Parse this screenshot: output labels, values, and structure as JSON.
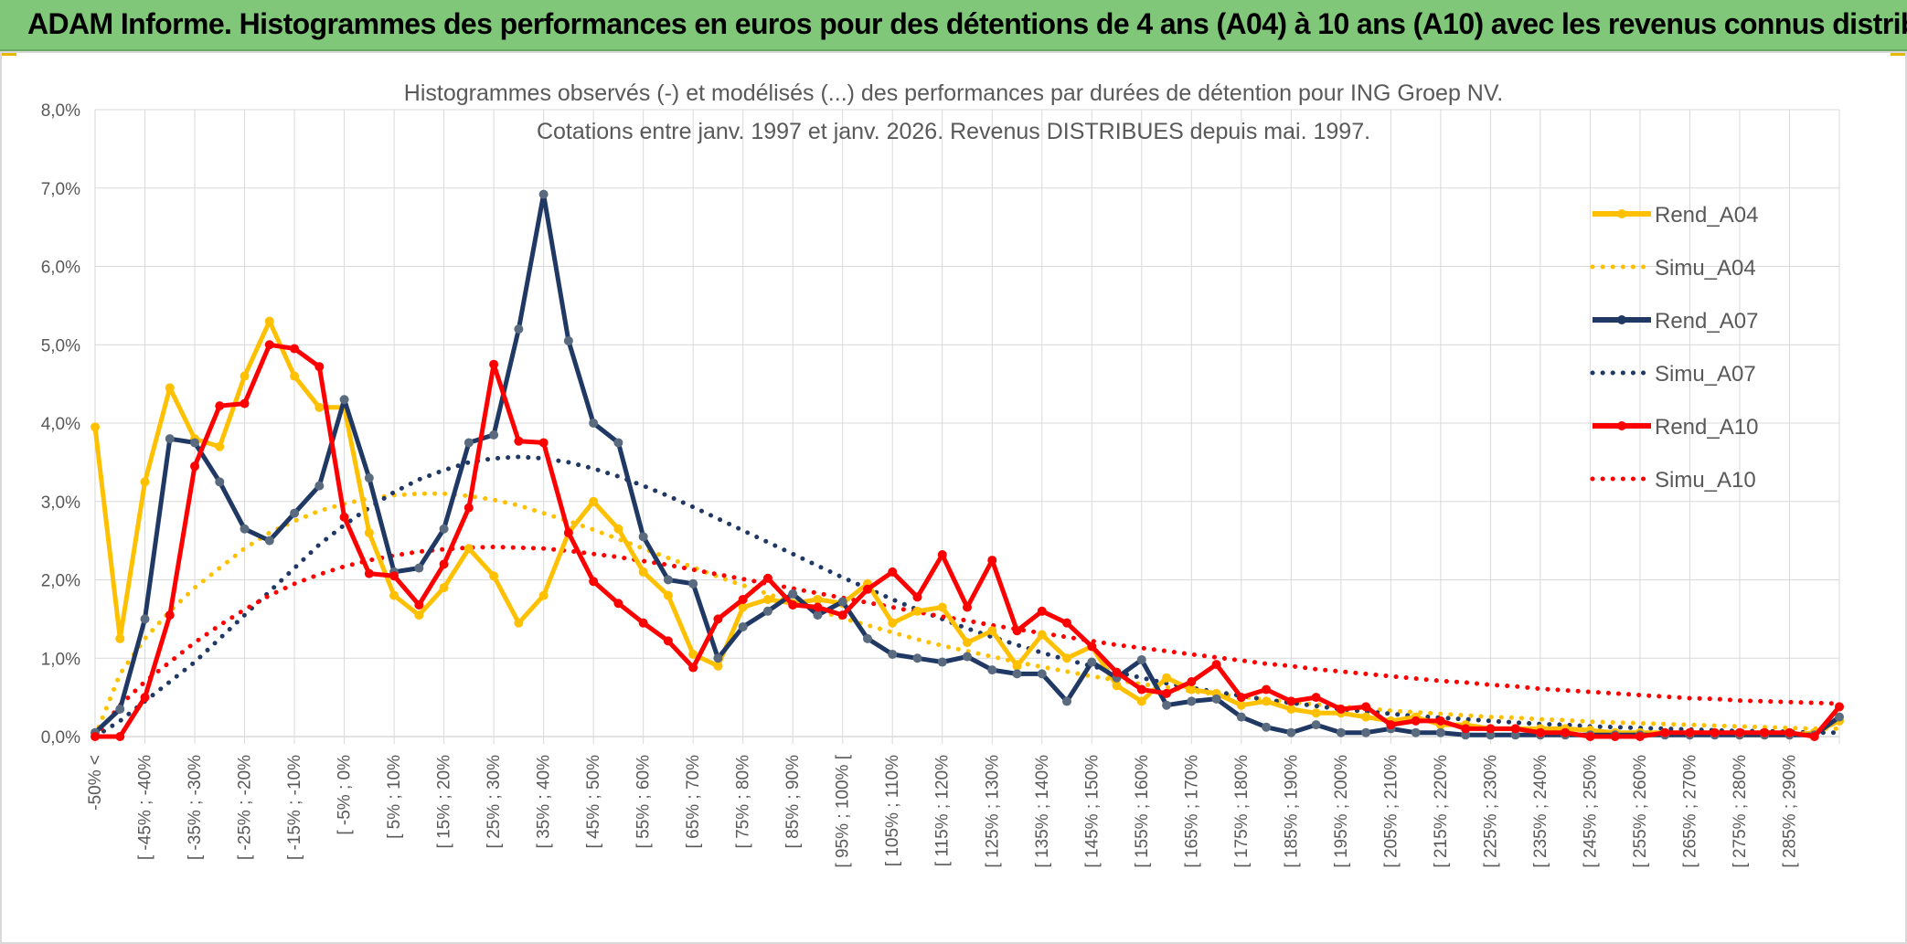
{
  "header": {
    "title": "ADAM Informe. Histogrammes des performances en euros pour des détentions de 4 ans (A04) à 10 ans (A10) avec les revenus connus distribués"
  },
  "colors": {
    "banner": "#80c77a",
    "A04": "#ffc000",
    "A07": "#203864",
    "A10": "#ff0000",
    "grid": "#d9d9d9",
    "text": "#595959"
  },
  "chart_data": {
    "type": "line",
    "title_lines": [
      "Histogrammes observés (-) et modélisés (...) des performances par durées de détention pour ING Groep NV.",
      "Cotations entre janv. 1997 et janv. 2026. Revenus DISTRIBUES depuis mai. 1997."
    ],
    "xlabel": "",
    "ylabel": "",
    "ylim": [
      0,
      8
    ],
    "y_unit": "%",
    "y_ticks": [
      "0,0%",
      "1,0%",
      "2,0%",
      "3,0%",
      "4,0%",
      "5,0%",
      "6,0%",
      "7,0%",
      "8,0%"
    ],
    "x_tick_labels": [
      "-50% <",
      "[ -45% ; -40%",
      "[ -35% ; -30%",
      "[ -25% ; -20%",
      "[ -15% ; -10%",
      "[ -5% ; 0%",
      "[ 5% ; 10%",
      "[ 15% ; 20%",
      "[ 25% ; 30%",
      "[ 35% ; 40%",
      "[ 45% ; 50%",
      "[ 55% ; 60%",
      "[ 65% ; 70%",
      "[ 75% ; 80%",
      "[ 85% ; 90%",
      "[ 95% ; 100% [",
      "[ 105% ; 110%",
      "[ 115% ; 120%",
      "[ 125% ; 130%",
      "[ 135% ; 140%",
      "[ 145% ; 150%",
      "[ 155% ; 160%",
      "[ 165% ; 170%",
      "[ 175% ; 180%",
      "[ 185% ; 190%",
      "[ 195% ; 200%",
      "[ 205% ; 210%",
      "[ 215% ; 220%",
      "[ 225% ; 230%",
      "[ 235% ; 240%",
      "[ 245% ; 250%",
      "[ 255% ; 260%",
      "[ 265% ; 270%",
      "[ 275% ; 280%",
      "[ 285% ; 290%"
    ],
    "legend_position": "right",
    "grid": true,
    "series": [
      {
        "name": "Rend_A04",
        "style": "solid",
        "color": "#ffc000",
        "values": [
          3.95,
          1.25,
          3.25,
          4.45,
          3.8,
          3.7,
          4.6,
          5.3,
          4.6,
          4.2,
          4.2,
          2.6,
          1.8,
          1.55,
          1.9,
          2.4,
          2.05,
          1.45,
          1.8,
          2.6,
          3.0,
          2.65,
          2.1,
          1.8,
          1.05,
          0.9,
          1.65,
          1.75,
          1.7,
          1.75,
          1.7,
          1.95,
          1.45,
          1.6,
          1.65,
          1.2,
          1.35,
          0.9,
          1.3,
          1.0,
          1.15,
          0.65,
          0.45,
          0.75,
          0.6,
          0.55,
          0.4,
          0.45,
          0.35,
          0.3,
          0.3,
          0.25,
          0.2,
          0.25,
          0.15,
          0.15,
          0.1,
          0.1,
          0.1,
          0.1,
          0.08,
          0.05,
          0.05,
          0.05,
          0.03,
          0.03,
          0.02,
          0.02,
          0.02,
          0.05,
          0.2
        ]
      },
      {
        "name": "Simu_A04",
        "style": "dotted",
        "color": "#ffc000",
        "values": [
          0.0,
          0.8,
          1.25,
          1.6,
          1.9,
          2.15,
          2.4,
          2.6,
          2.75,
          2.88,
          2.97,
          3.04,
          3.08,
          3.1,
          3.1,
          3.07,
          3.02,
          2.95,
          2.85,
          2.75,
          2.64,
          2.52,
          2.4,
          2.28,
          2.16,
          2.04,
          1.93,
          1.82,
          1.71,
          1.61,
          1.51,
          1.42,
          1.33,
          1.24,
          1.16,
          1.09,
          1.02,
          0.95,
          0.89,
          0.83,
          0.77,
          0.72,
          0.67,
          0.63,
          0.58,
          0.54,
          0.51,
          0.47,
          0.44,
          0.41,
          0.38,
          0.36,
          0.33,
          0.31,
          0.29,
          0.27,
          0.25,
          0.24,
          0.22,
          0.21,
          0.19,
          0.18,
          0.17,
          0.16,
          0.15,
          0.14,
          0.13,
          0.12,
          0.11,
          0.1,
          0.1
        ]
      },
      {
        "name": "Rend_A07",
        "style": "solid",
        "color": "#203864",
        "values": [
          0.05,
          0.35,
          1.5,
          3.8,
          3.75,
          3.25,
          2.65,
          2.5,
          2.85,
          3.2,
          4.3,
          3.3,
          2.1,
          2.15,
          2.65,
          3.75,
          3.85,
          5.2,
          6.92,
          5.05,
          4.0,
          3.75,
          2.55,
          2.0,
          1.95,
          1.0,
          1.4,
          1.6,
          1.82,
          1.55,
          1.72,
          1.25,
          1.05,
          1.0,
          0.95,
          1.02,
          0.85,
          0.8,
          0.8,
          0.45,
          0.95,
          0.75,
          0.98,
          0.4,
          0.45,
          0.48,
          0.25,
          0.12,
          0.05,
          0.15,
          0.05,
          0.05,
          0.1,
          0.05,
          0.05,
          0.02,
          0.02,
          0.02,
          0.02,
          0.02,
          0.02,
          0.02,
          0.02,
          0.02,
          0.02,
          0.02,
          0.02,
          0.02,
          0.02,
          0.02,
          0.25
        ]
      },
      {
        "name": "Simu_A07",
        "style": "dotted",
        "color": "#203864",
        "values": [
          0.0,
          0.2,
          0.45,
          0.7,
          0.95,
          1.25,
          1.55,
          1.85,
          2.15,
          2.45,
          2.7,
          2.92,
          3.12,
          3.28,
          3.4,
          3.5,
          3.55,
          3.57,
          3.55,
          3.5,
          3.42,
          3.32,
          3.2,
          3.07,
          2.93,
          2.78,
          2.63,
          2.48,
          2.33,
          2.18,
          2.03,
          1.89,
          1.75,
          1.62,
          1.5,
          1.38,
          1.27,
          1.17,
          1.07,
          0.98,
          0.9,
          0.82,
          0.75,
          0.68,
          0.62,
          0.57,
          0.52,
          0.47,
          0.43,
          0.39,
          0.35,
          0.32,
          0.29,
          0.26,
          0.24,
          0.22,
          0.2,
          0.18,
          0.16,
          0.15,
          0.13,
          0.12,
          0.11,
          0.1,
          0.09,
          0.08,
          0.07,
          0.07,
          0.06,
          0.05,
          0.05
        ]
      },
      {
        "name": "Rend_A10",
        "style": "solid",
        "color": "#ff0000",
        "values": [
          0.0,
          0.0,
          0.5,
          1.55,
          3.45,
          4.22,
          4.25,
          5.0,
          4.95,
          4.72,
          2.8,
          2.08,
          2.05,
          1.68,
          2.2,
          2.92,
          4.75,
          3.77,
          3.75,
          2.6,
          1.98,
          1.7,
          1.45,
          1.22,
          0.88,
          1.5,
          1.75,
          2.02,
          1.68,
          1.65,
          1.55,
          1.88,
          2.1,
          1.78,
          2.32,
          1.65,
          2.25,
          1.35,
          1.6,
          1.45,
          1.15,
          0.82,
          0.6,
          0.55,
          0.7,
          0.92,
          0.5,
          0.6,
          0.45,
          0.5,
          0.35,
          0.38,
          0.15,
          0.2,
          0.2,
          0.1,
          0.1,
          0.1,
          0.05,
          0.05,
          0.0,
          0.0,
          0.0,
          0.05,
          0.05,
          0.05,
          0.05,
          0.05,
          0.05,
          0.0,
          0.38
        ]
      },
      {
        "name": "Simu_A10",
        "style": "dotted",
        "color": "#ff0000",
        "values": [
          0.0,
          0.4,
          0.7,
          0.95,
          1.2,
          1.42,
          1.62,
          1.8,
          1.95,
          2.07,
          2.17,
          2.25,
          2.31,
          2.36,
          2.39,
          2.41,
          2.42,
          2.41,
          2.4,
          2.37,
          2.33,
          2.29,
          2.24,
          2.19,
          2.13,
          2.07,
          2.01,
          1.95,
          1.89,
          1.83,
          1.77,
          1.71,
          1.65,
          1.59,
          1.53,
          1.48,
          1.42,
          1.37,
          1.32,
          1.27,
          1.22,
          1.17,
          1.13,
          1.09,
          1.05,
          1.01,
          0.97,
          0.93,
          0.9,
          0.86,
          0.83,
          0.8,
          0.77,
          0.74,
          0.71,
          0.69,
          0.66,
          0.64,
          0.61,
          0.59,
          0.57,
          0.55,
          0.53,
          0.51,
          0.49,
          0.48,
          0.46,
          0.45,
          0.44,
          0.43,
          0.42
        ]
      }
    ]
  }
}
